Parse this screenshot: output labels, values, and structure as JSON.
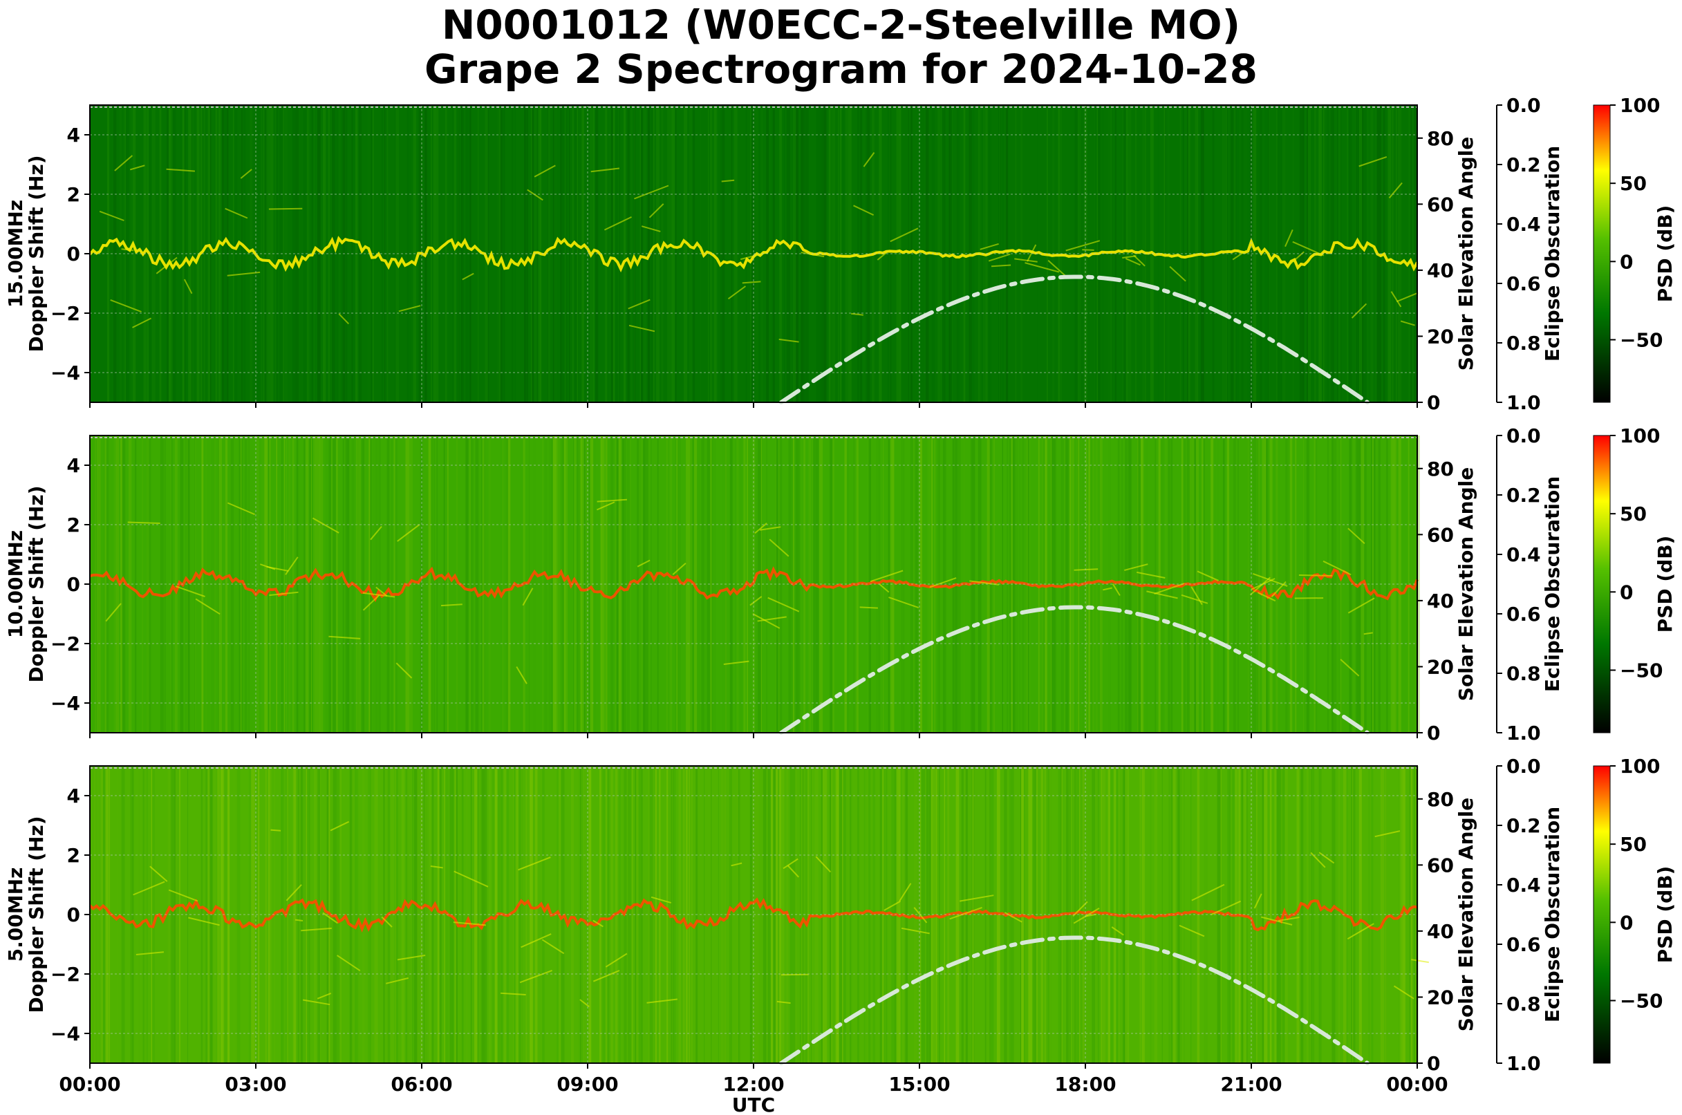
{
  "title": {
    "line1": "N0001012 (W0ECC-2-Steelville MO)",
    "line2": "Grape 2 Spectrogram for 2024-10-28"
  },
  "xlabel": "UTC",
  "chart_data": [
    {
      "type": "heatmap",
      "band": "15.00MHz",
      "ylabel": "Doppler Shift (Hz)",
      "ylim": [
        -5,
        5
      ],
      "yticks": [
        "4",
        "2",
        "0",
        "−2",
        "−4"
      ],
      "xlim": [
        "00:00",
        "24:00"
      ],
      "xticks": [
        "00:00",
        "03:00",
        "06:00",
        "09:00",
        "12:00",
        "15:00",
        "18:00",
        "21:00",
        "00:00"
      ],
      "grid": true,
      "elevation_axis": {
        "label": "Solar Elevation Angle",
        "range": [
          0,
          90
        ],
        "ticks": [
          "0",
          "20",
          "40",
          "60",
          "80"
        ]
      },
      "eclipse_axis": {
        "label": "Eclipse Obscuration",
        "range": [
          0.0,
          1.0
        ],
        "ticks": [
          "0.0",
          "0.2",
          "0.4",
          "0.6",
          "0.8",
          "1.0"
        ]
      },
      "colorbar": {
        "label": "PSD (dB)",
        "range": [
          -90,
          100
        ],
        "ticks": [
          "100",
          "50",
          "0",
          "−50"
        ],
        "colors": [
          "#000000",
          "#007700",
          "#ffff00",
          "#ff0000"
        ]
      },
      "background_level_db": -30,
      "sunrise_utc": 12.5,
      "solar_noon_utc": 17.85,
      "max_elevation_deg": 38,
      "sunset_utc": 23.1
    },
    {
      "type": "heatmap",
      "band": "10.00MHz",
      "ylabel": "Doppler Shift (Hz)",
      "ylim": [
        -5,
        5
      ],
      "yticks": [
        "4",
        "2",
        "0",
        "−2",
        "−4"
      ],
      "xlim": [
        "00:00",
        "24:00"
      ],
      "xticks": [
        "00:00",
        "03:00",
        "06:00",
        "09:00",
        "12:00",
        "15:00",
        "18:00",
        "21:00",
        "00:00"
      ],
      "grid": true,
      "elevation_axis": {
        "label": "Solar Elevation Angle",
        "range": [
          0,
          90
        ],
        "ticks": [
          "0",
          "20",
          "40",
          "60",
          "80"
        ]
      },
      "eclipse_axis": {
        "label": "Eclipse Obscuration",
        "range": [
          0.0,
          1.0
        ],
        "ticks": [
          "0.0",
          "0.2",
          "0.4",
          "0.6",
          "0.8",
          "1.0"
        ]
      },
      "colorbar": {
        "label": "PSD (dB)",
        "range": [
          -90,
          100
        ],
        "ticks": [
          "100",
          "50",
          "0",
          "−50"
        ],
        "colors": [
          "#000000",
          "#007700",
          "#ffff00",
          "#ff0000"
        ]
      },
      "background_level_db": 5,
      "sunrise_utc": 12.5,
      "solar_noon_utc": 17.85,
      "max_elevation_deg": 38,
      "sunset_utc": 23.1
    },
    {
      "type": "heatmap",
      "band": "5.00MHz",
      "ylabel": "Doppler Shift (Hz)",
      "ylim": [
        -5,
        5
      ],
      "yticks": [
        "4",
        "2",
        "0",
        "−2",
        "−4"
      ],
      "xlim": [
        "00:00",
        "24:00"
      ],
      "xticks": [
        "00:00",
        "03:00",
        "06:00",
        "09:00",
        "12:00",
        "15:00",
        "18:00",
        "21:00",
        "00:00"
      ],
      "grid": true,
      "elevation_axis": {
        "label": "Solar Elevation Angle",
        "range": [
          0,
          90
        ],
        "ticks": [
          "0",
          "20",
          "40",
          "60",
          "80"
        ]
      },
      "eclipse_axis": {
        "label": "Eclipse Obscuration",
        "range": [
          0.0,
          1.0
        ],
        "ticks": [
          "0.0",
          "0.2",
          "0.4",
          "0.6",
          "0.8",
          "1.0"
        ]
      },
      "colorbar": {
        "label": "PSD (dB)",
        "range": [
          -90,
          100
        ],
        "ticks": [
          "100",
          "50",
          "0",
          "−50"
        ],
        "colors": [
          "#000000",
          "#007700",
          "#ffff00",
          "#ff0000"
        ]
      },
      "background_level_db": 10,
      "sunrise_utc": 12.5,
      "solar_noon_utc": 17.85,
      "max_elevation_deg": 38,
      "sunset_utc": 23.1
    }
  ],
  "colors": {
    "elevation_curve": "#d8e8d8",
    "grid": "#b0c8b0"
  }
}
